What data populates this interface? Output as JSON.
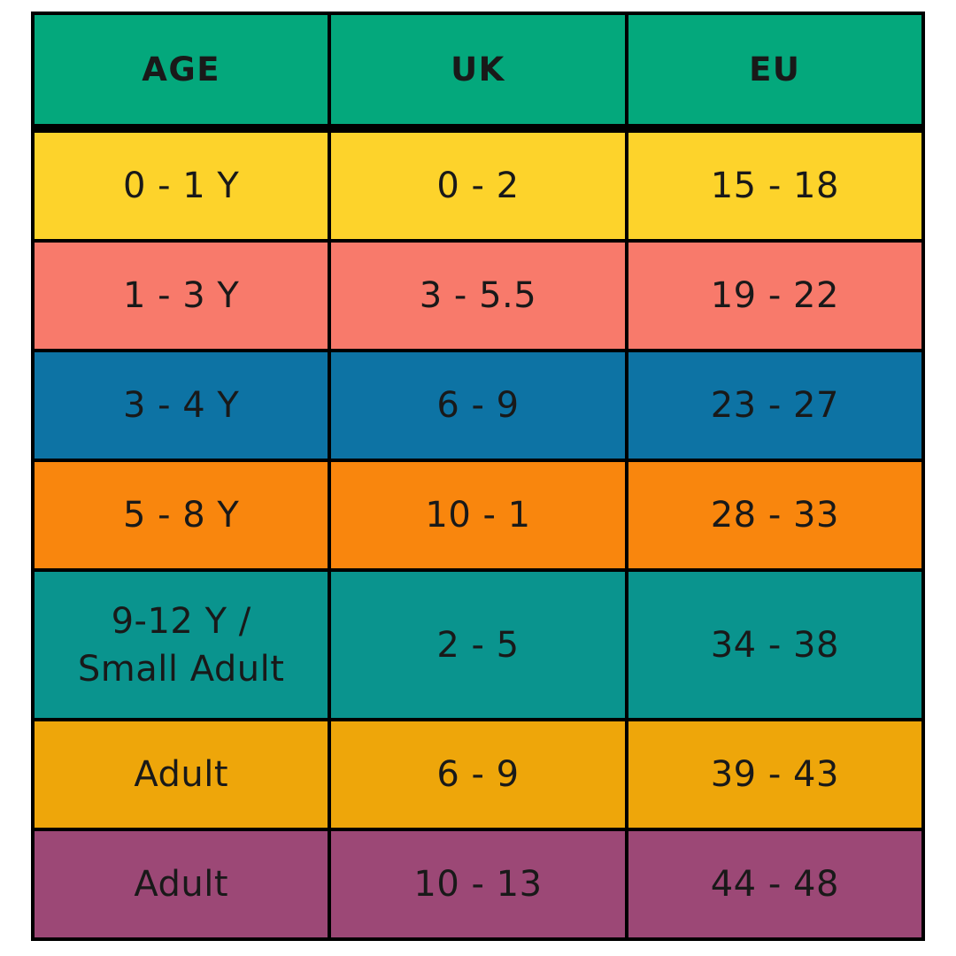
{
  "chart_data": {
    "type": "table",
    "columns": [
      "AGE",
      "UK",
      "EU"
    ],
    "rows": [
      {
        "age": "0 - 1 Y",
        "uk": "0 - 2",
        "eu": "15 - 18"
      },
      {
        "age": "1 - 3 Y",
        "uk": "3 - 5.5",
        "eu": "19 - 22"
      },
      {
        "age": "3 - 4 Y",
        "uk": "6 - 9",
        "eu": "23 - 27"
      },
      {
        "age": "5 - 8 Y",
        "uk": "10 - 1",
        "eu": "28 - 33"
      },
      {
        "age": "9-12 Y /\nSmall Adult",
        "uk": "2 - 5",
        "eu": "34 - 38"
      },
      {
        "age": "Adult",
        "uk": "6 - 9",
        "eu": "39 - 43"
      },
      {
        "age": "Adult",
        "uk": "10 - 13",
        "eu": "44 - 48"
      }
    ],
    "layout": {
      "grid": "on",
      "header_position": "top"
    }
  },
  "colors": {
    "header_bg": "#04a87c",
    "row_bgs": [
      "#fdd32b",
      "#f87a6b",
      "#0d73a4",
      "#f9860d",
      "#0a948e",
      "#eea60a",
      "#9c4876"
    ],
    "border": "#000000",
    "text": "#191919"
  }
}
